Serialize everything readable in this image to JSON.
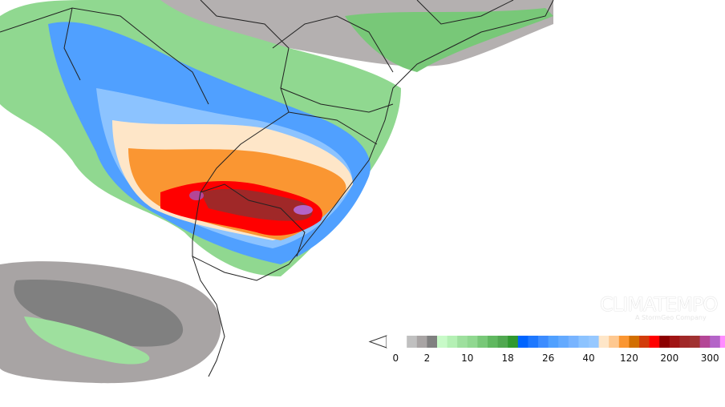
{
  "map": {
    "brand": "CLIMATEMPO",
    "brand_sub": "A StormGeo Company",
    "colorbar": {
      "tick_labels": [
        "0",
        "2",
        "10",
        "18",
        "26",
        "40",
        "120",
        "200",
        "300"
      ],
      "colors": [
        "#ffffff",
        "#ffffff",
        "#c0c0c0",
        "#a8a4a4",
        "#808080",
        "#c8fac8",
        "#b4f0b4",
        "#9ee09e",
        "#90d890",
        "#78c878",
        "#60b860",
        "#50a850",
        "#309930",
        "#0064ff",
        "#1e78ff",
        "#3c8cff",
        "#50a0ff",
        "#64aaff",
        "#78b4ff",
        "#8cc3ff",
        "#96c8ff",
        "#fee6c8",
        "#fec890",
        "#fa9632",
        "#d26e00",
        "#d23c0a",
        "#ff0000",
        "#8c0000",
        "#a01414",
        "#a02828",
        "#a03232",
        "#b44696",
        "#b464c8",
        "#ff8cff"
      ]
    }
  }
}
